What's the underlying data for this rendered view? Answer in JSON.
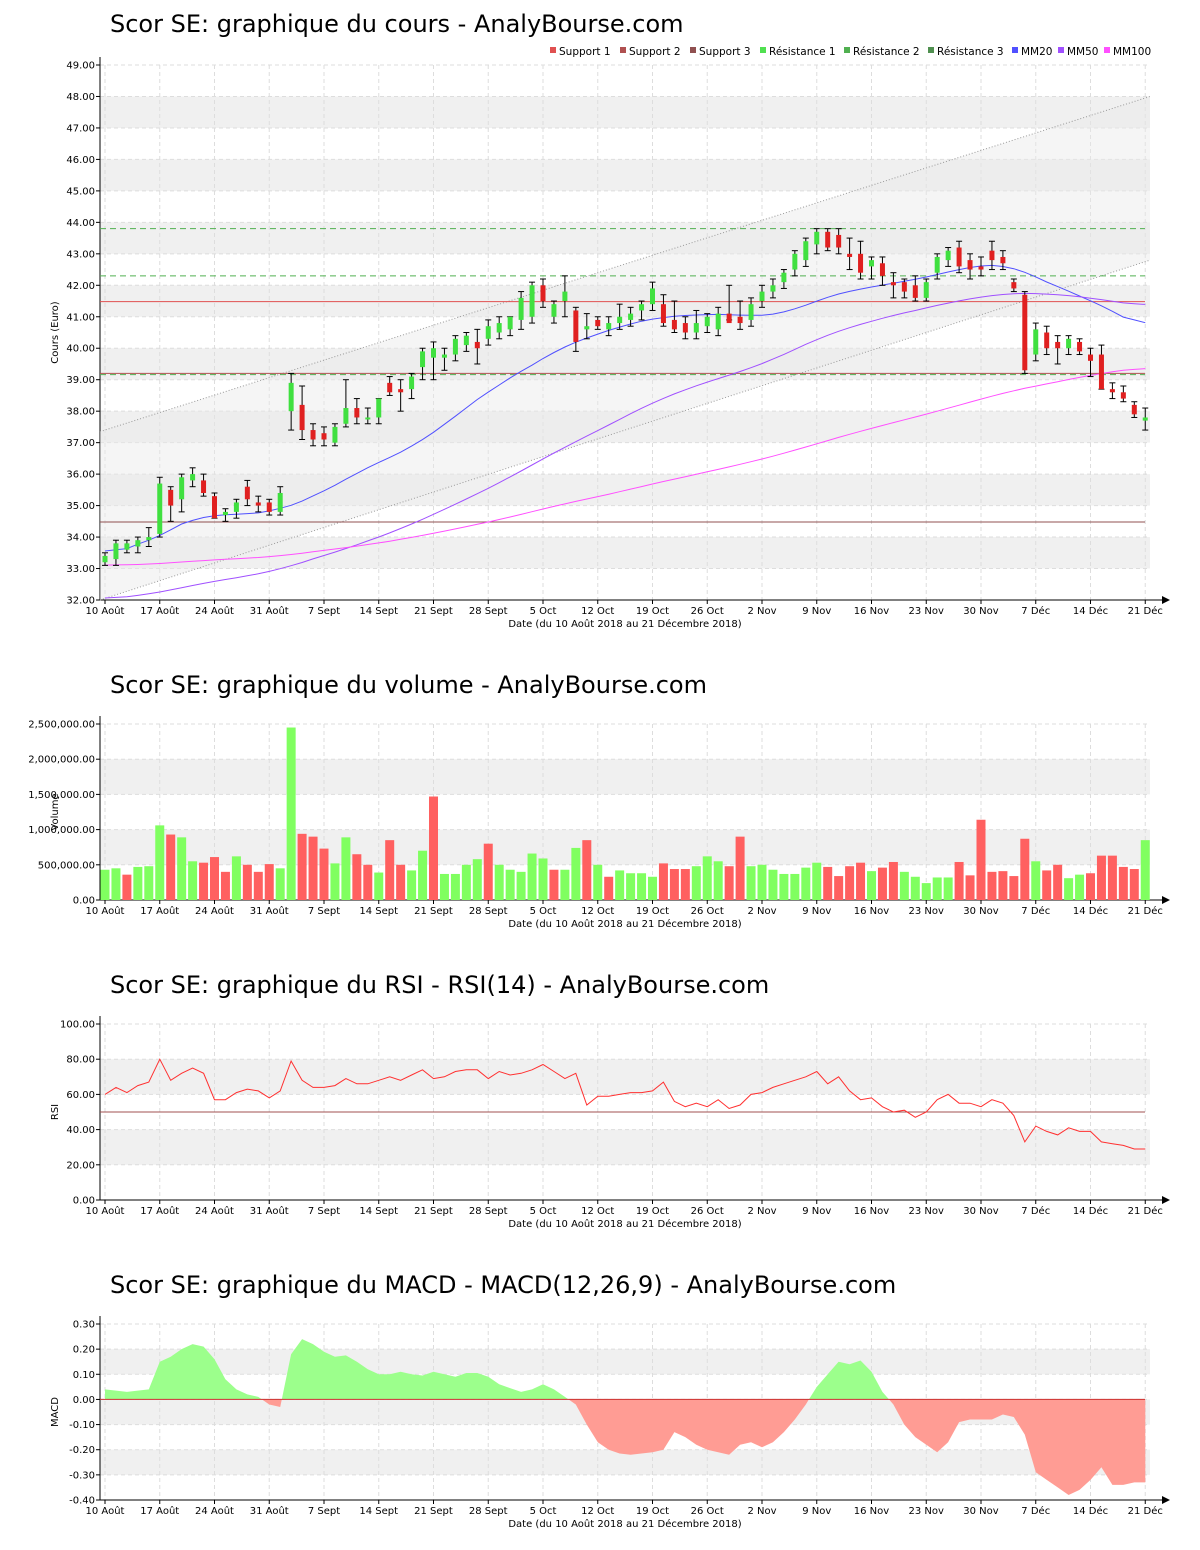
{
  "chart_data": [
    {
      "type": "candlestick",
      "title": "Scor SE: graphique du cours - AnalyBourse.com",
      "xlabel": "Date (du 10 Août 2018 au 21 Décembre 2018)",
      "ylabel": "Cours (Euro)",
      "ylim": [
        32,
        49
      ],
      "yticks": [
        "32.00",
        "33.00",
        "34.00",
        "35.00",
        "36.00",
        "37.00",
        "38.00",
        "39.00",
        "40.00",
        "41.00",
        "42.00",
        "43.00",
        "44.00",
        "45.00",
        "46.00",
        "47.00",
        "48.00",
        "49.00"
      ],
      "xticks": [
        "10 Août",
        "17 Août",
        "24 Août",
        "31 Août",
        "7 Sept",
        "14 Sept",
        "21 Sept",
        "28 Sept",
        "5 Oct",
        "12 Oct",
        "19 Oct",
        "26 Oct",
        "2 Nov",
        "9 Nov",
        "16 Nov",
        "23 Nov",
        "30 Nov",
        "7 Déc",
        "14 Déc",
        "21 Déc"
      ],
      "legend": [
        {
          "name": "Support 1",
          "color": "#e05050"
        },
        {
          "name": "Support 2",
          "color": "#b05050"
        },
        {
          "name": "Support 3",
          "color": "#905050"
        },
        {
          "name": "Résistance 1",
          "color": "#50e050"
        },
        {
          "name": "Résistance 2",
          "color": "#50b050"
        },
        {
          "name": "Résistance 3",
          "color": "#509050"
        },
        {
          "name": "MM20",
          "color": "#5050ff"
        },
        {
          "name": "MM50",
          "color": "#a050ff"
        },
        {
          "name": "MM100",
          "color": "#ff50ff"
        }
      ],
      "legend_position": "top-right",
      "grid": true,
      "levels": {
        "support_1": 41.48,
        "support_2": 39.2,
        "support_3": 34.48,
        "resistance_1": 39.16,
        "resistance_2": 42.3,
        "resistance_3": 43.8
      },
      "candles": [
        [
          33.2,
          33.5,
          33.1,
          33.4
        ],
        [
          33.3,
          33.9,
          33.1,
          33.8
        ],
        [
          33.6,
          33.9,
          33.5,
          33.8
        ],
        [
          33.7,
          34.0,
          33.5,
          33.9
        ],
        [
          33.9,
          34.3,
          33.7,
          34.0
        ],
        [
          34.1,
          35.9,
          34.0,
          35.7
        ],
        [
          35.5,
          35.6,
          34.5,
          35.0
        ],
        [
          35.2,
          36.0,
          34.8,
          35.9
        ],
        [
          35.8,
          36.2,
          35.6,
          36.0
        ],
        [
          35.8,
          36.0,
          35.3,
          35.4
        ],
        [
          35.3,
          35.4,
          34.6,
          34.6
        ],
        [
          34.7,
          34.9,
          34.5,
          34.8
        ],
        [
          34.8,
          35.2,
          34.6,
          35.1
        ],
        [
          35.6,
          35.8,
          35.0,
          35.2
        ],
        [
          35.1,
          35.3,
          34.8,
          35.0
        ],
        [
          35.1,
          35.2,
          34.7,
          34.8
        ],
        [
          34.8,
          35.6,
          34.7,
          35.4
        ],
        [
          38.0,
          39.2,
          37.4,
          38.9
        ],
        [
          38.2,
          38.8,
          37.1,
          37.4
        ],
        [
          37.4,
          37.6,
          36.9,
          37.1
        ],
        [
          37.3,
          37.5,
          36.9,
          37.1
        ],
        [
          37.0,
          37.6,
          36.9,
          37.5
        ],
        [
          37.6,
          39.0,
          37.5,
          38.1
        ],
        [
          38.1,
          38.4,
          37.6,
          37.8
        ],
        [
          37.8,
          38.1,
          37.6,
          37.8
        ],
        [
          37.8,
          38.4,
          37.6,
          38.4
        ],
        [
          38.9,
          39.1,
          38.5,
          38.6
        ],
        [
          38.7,
          39.0,
          38.0,
          38.6
        ],
        [
          38.7,
          39.2,
          38.4,
          39.1
        ],
        [
          39.4,
          40.0,
          39.0,
          39.9
        ],
        [
          39.7,
          40.2,
          39.0,
          40.0
        ],
        [
          39.7,
          40.0,
          39.3,
          39.8
        ],
        [
          39.8,
          40.4,
          39.6,
          40.3
        ],
        [
          40.1,
          40.5,
          39.9,
          40.4
        ],
        [
          40.2,
          40.6,
          39.5,
          40.0
        ],
        [
          40.3,
          40.9,
          40.1,
          40.7
        ],
        [
          40.5,
          41.0,
          40.3,
          40.8
        ],
        [
          40.6,
          41.0,
          40.4,
          41.0
        ],
        [
          40.9,
          41.8,
          40.6,
          41.6
        ],
        [
          41.0,
          42.1,
          40.8,
          42.0
        ],
        [
          42.0,
          42.2,
          41.3,
          41.5
        ],
        [
          41.0,
          41.5,
          40.8,
          41.4
        ],
        [
          41.5,
          42.3,
          41.0,
          41.8
        ],
        [
          41.2,
          41.3,
          39.9,
          40.2
        ],
        [
          40.6,
          41.1,
          40.3,
          40.7
        ],
        [
          40.9,
          41.0,
          40.6,
          40.7
        ],
        [
          40.6,
          41.0,
          40.4,
          40.8
        ],
        [
          40.8,
          41.4,
          40.6,
          41.0
        ],
        [
          40.9,
          41.3,
          40.7,
          41.1
        ],
        [
          41.2,
          41.5,
          40.9,
          41.4
        ],
        [
          41.4,
          42.1,
          41.2,
          41.9
        ],
        [
          41.4,
          41.7,
          40.7,
          40.8
        ],
        [
          40.9,
          41.5,
          40.5,
          40.6
        ],
        [
          40.8,
          41.0,
          40.3,
          40.5
        ],
        [
          40.5,
          41.2,
          40.3,
          40.8
        ],
        [
          40.7,
          41.1,
          40.5,
          41.0
        ],
        [
          40.6,
          41.3,
          40.4,
          41.1
        ],
        [
          41.1,
          42.0,
          40.9,
          40.8
        ],
        [
          41.0,
          41.5,
          40.6,
          40.8
        ],
        [
          40.9,
          41.6,
          40.7,
          41.4
        ],
        [
          41.5,
          42.0,
          41.3,
          41.8
        ],
        [
          41.8,
          42.2,
          41.6,
          42.0
        ],
        [
          42.1,
          42.5,
          41.9,
          42.4
        ],
        [
          42.5,
          43.1,
          42.3,
          43.0
        ],
        [
          42.8,
          43.5,
          42.6,
          43.4
        ],
        [
          43.3,
          43.8,
          43.0,
          43.7
        ],
        [
          43.7,
          43.8,
          43.1,
          43.2
        ],
        [
          43.6,
          43.8,
          43.0,
          43.2
        ],
        [
          43.0,
          43.5,
          42.5,
          42.9
        ],
        [
          43.0,
          43.4,
          42.2,
          42.4
        ],
        [
          42.6,
          42.9,
          42.2,
          42.8
        ],
        [
          42.7,
          42.9,
          42.0,
          42.3
        ],
        [
          42.1,
          42.4,
          41.6,
          42.0
        ],
        [
          42.1,
          42.2,
          41.6,
          41.8
        ],
        [
          42.0,
          42.3,
          41.5,
          41.6
        ],
        [
          41.6,
          42.2,
          41.5,
          42.1
        ],
        [
          42.4,
          43.0,
          42.2,
          42.9
        ],
        [
          42.8,
          43.2,
          42.6,
          43.1
        ],
        [
          43.2,
          43.4,
          42.4,
          42.6
        ],
        [
          42.8,
          43.0,
          42.2,
          42.5
        ],
        [
          42.6,
          42.9,
          42.3,
          42.5
        ],
        [
          43.1,
          43.4,
          42.5,
          42.8
        ],
        [
          42.9,
          43.1,
          42.5,
          42.7
        ],
        [
          42.1,
          42.2,
          41.8,
          41.9
        ],
        [
          41.7,
          41.8,
          39.2,
          39.3
        ],
        [
          39.8,
          40.8,
          39.6,
          40.6
        ],
        [
          40.5,
          40.7,
          39.8,
          40.0
        ],
        [
          40.2,
          40.4,
          39.5,
          40.0
        ],
        [
          40.0,
          40.4,
          39.8,
          40.3
        ],
        [
          40.2,
          40.3,
          39.8,
          39.9
        ],
        [
          39.8,
          40.0,
          39.1,
          39.6
        ],
        [
          39.8,
          40.1,
          38.7,
          38.7
        ],
        [
          38.7,
          38.9,
          38.4,
          38.6
        ],
        [
          38.6,
          38.8,
          38.3,
          38.4
        ],
        [
          38.2,
          38.3,
          37.8,
          37.9
        ],
        [
          37.7,
          38.1,
          37.4,
          37.8
        ]
      ]
    },
    {
      "type": "bar",
      "title": "Scor SE: graphique du volume - AnalyBourse.com",
      "xlabel": "Date (du 10 Août 2018 au 21 Décembre 2018)",
      "ylabel": "Volume",
      "ylim": [
        0,
        2500000
      ],
      "yticks": [
        "0.00",
        "500,000.00",
        "1,000,000.00",
        "1,500,000.00",
        "2,000,000.00",
        "2,500,000.00"
      ],
      "xticks": [
        "10 Août",
        "17 Août",
        "24 Août",
        "31 Août",
        "7 Sept",
        "14 Sept",
        "21 Sept",
        "28 Sept",
        "5 Oct",
        "12 Oct",
        "19 Oct",
        "26 Oct",
        "2 Nov",
        "9 Nov",
        "16 Nov",
        "23 Nov",
        "30 Nov",
        "7 Déc",
        "14 Déc",
        "21 Déc"
      ],
      "up_color": "#80ff60",
      "down_color": "#ff6060",
      "values": [
        430000,
        450000,
        360000,
        470000,
        480000,
        1060000,
        930000,
        890000,
        550000,
        530000,
        610000,
        400000,
        620000,
        500000,
        400000,
        510000,
        450000,
        2450000,
        940000,
        900000,
        730000,
        520000,
        890000,
        650000,
        500000,
        390000,
        850000,
        500000,
        420000,
        700000,
        1470000,
        370000,
        370000,
        500000,
        580000,
        800000,
        500000,
        430000,
        400000,
        660000,
        590000,
        430000,
        430000,
        740000,
        850000,
        500000,
        330000,
        420000,
        380000,
        380000,
        330000,
        520000,
        440000,
        440000,
        480000,
        620000,
        550000,
        480000,
        900000,
        480000,
        500000,
        430000,
        370000,
        370000,
        460000,
        530000,
        470000,
        340000,
        480000,
        530000,
        410000,
        460000,
        540000,
        400000,
        330000,
        240000,
        320000,
        320000,
        540000,
        350000,
        1140000,
        400000,
        410000,
        340000,
        870000,
        550000,
        420000,
        500000,
        310000,
        360000,
        380000,
        630000,
        630000,
        470000,
        440000,
        850000
      ],
      "directions": [
        "u",
        "u",
        "d",
        "u",
        "u",
        "u",
        "d",
        "u",
        "u",
        "d",
        "d",
        "d",
        "u",
        "d",
        "d",
        "d",
        "u",
        "u",
        "d",
        "d",
        "d",
        "u",
        "u",
        "d",
        "d",
        "u",
        "d",
        "d",
        "u",
        "u",
        "d",
        "u",
        "u",
        "u",
        "u",
        "d",
        "u",
        "u",
        "u",
        "u",
        "u",
        "d",
        "u",
        "u",
        "d",
        "u",
        "d",
        "u",
        "u",
        "u",
        "u",
        "d",
        "d",
        "d",
        "u",
        "u",
        "u",
        "d",
        "d",
        "u",
        "u",
        "u",
        "u",
        "u",
        "u",
        "u",
        "d",
        "d",
        "d",
        "d",
        "u",
        "d",
        "d",
        "u",
        "u",
        "u",
        "u",
        "u",
        "d",
        "d",
        "d",
        "d",
        "d",
        "d",
        "d",
        "u",
        "d",
        "d",
        "u",
        "u",
        "d",
        "d",
        "d",
        "d",
        "d",
        "u"
      ]
    },
    {
      "type": "line",
      "title": "Scor SE: graphique du RSI - RSI(14) - AnalyBourse.com",
      "xlabel": "Date (du 10 Août 2018 au 21 Décembre 2018)",
      "ylabel": "RSI",
      "ylim": [
        0,
        100
      ],
      "yticks": [
        "0.00",
        "20.00",
        "40.00",
        "60.00",
        "80.00",
        "100.00"
      ],
      "xticks": [
        "10 Août",
        "17 Août",
        "24 Août",
        "31 Août",
        "7 Sept",
        "14 Sept",
        "21 Sept",
        "28 Sept",
        "5 Oct",
        "12 Oct",
        "19 Oct",
        "26 Oct",
        "2 Nov",
        "9 Nov",
        "16 Nov",
        "23 Nov",
        "30 Nov",
        "7 Déc",
        "14 Déc",
        "21 Déc"
      ],
      "reference_line": 50,
      "line_color": "#ff3030",
      "values": [
        60,
        64,
        61,
        65,
        67,
        80,
        68,
        72,
        75,
        72,
        57,
        57,
        61,
        63,
        62,
        58,
        62,
        79,
        68,
        64,
        64,
        65,
        69,
        66,
        66,
        68,
        70,
        68,
        71,
        74,
        69,
        70,
        73,
        74,
        74,
        69,
        73,
        71,
        72,
        74,
        77,
        73,
        69,
        72,
        54,
        59,
        59,
        60,
        61,
        61,
        62,
        67,
        56,
        53,
        55,
        53,
        57,
        52,
        54,
        60,
        61,
        64,
        66,
        68,
        70,
        73,
        66,
        70,
        62,
        57,
        58,
        53,
        50,
        51,
        47,
        50,
        57,
        60,
        55,
        55,
        53,
        57,
        55,
        48,
        33,
        42,
        39,
        37,
        41,
        39,
        39,
        33,
        32,
        31,
        29,
        29
      ]
    },
    {
      "type": "area",
      "title": "Scor SE: graphique du MACD - MACD(12,26,9) - AnalyBourse.com",
      "xlabel": "Date (du 10 Août 2018 au 21 Décembre 2018)",
      "ylabel": "MACD",
      "ylim": [
        -0.4,
        0.3
      ],
      "yticks": [
        "-0.40",
        "-0.30",
        "-0.20",
        "-0.10",
        "0.00",
        "0.10",
        "0.20",
        "0.30"
      ],
      "xticks": [
        "10 Août",
        "17 Août",
        "24 Août",
        "31 Août",
        "7 Sept",
        "14 Sept",
        "21 Sept",
        "28 Sept",
        "5 Oct",
        "12 Oct",
        "19 Oct",
        "26 Oct",
        "2 Nov",
        "9 Nov",
        "16 Nov",
        "23 Nov",
        "30 Nov",
        "7 Déc",
        "14 Déc",
        "21 Déc"
      ],
      "positive_color": "#9cff8c",
      "negative_color": "#ff9c94",
      "values": [
        0.04,
        0.035,
        0.03,
        0.035,
        0.04,
        0.15,
        0.17,
        0.2,
        0.22,
        0.21,
        0.16,
        0.08,
        0.04,
        0.02,
        0.01,
        -0.02,
        -0.03,
        0.18,
        0.24,
        0.22,
        0.19,
        0.17,
        0.175,
        0.15,
        0.12,
        0.1,
        0.1,
        0.11,
        0.1,
        0.095,
        0.11,
        0.1,
        0.09,
        0.105,
        0.105,
        0.09,
        0.06,
        0.045,
        0.03,
        0.04,
        0.06,
        0.04,
        0.01,
        -0.02,
        -0.1,
        -0.17,
        -0.2,
        -0.215,
        -0.22,
        -0.215,
        -0.21,
        -0.2,
        -0.13,
        -0.15,
        -0.18,
        -0.2,
        -0.21,
        -0.22,
        -0.18,
        -0.17,
        -0.19,
        -0.17,
        -0.13,
        -0.08,
        -0.02,
        0.05,
        0.1,
        0.15,
        0.14,
        0.155,
        0.11,
        0.03,
        -0.02,
        -0.1,
        -0.15,
        -0.18,
        -0.21,
        -0.17,
        -0.09,
        -0.08,
        -0.08,
        -0.08,
        -0.06,
        -0.07,
        -0.14,
        -0.29,
        -0.32,
        -0.35,
        -0.38,
        -0.36,
        -0.32,
        -0.27,
        -0.34,
        -0.34,
        -0.33,
        -0.33
      ]
    }
  ]
}
